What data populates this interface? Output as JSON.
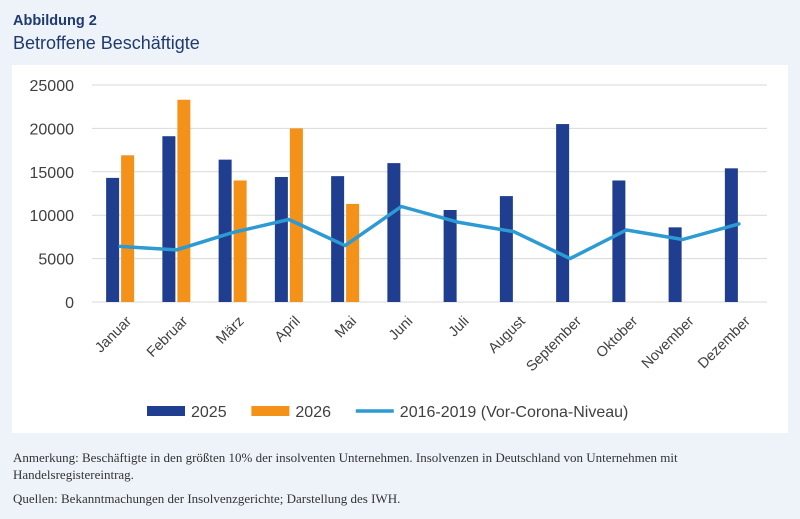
{
  "header": {
    "figure_label": "Abbildung 2",
    "title": "Betroffene Beschäftigte"
  },
  "notes": {
    "annotation": "Anmerkung: Beschäftigte in den größten 10% der insolventen Unternehmen. Insolvenzen in Deutschland von Unternehmen mit Handelsregistereintrag.",
    "sources": "Quellen: Bekanntmachungen der Insolvenzgerichte; Darstellung des IWH."
  },
  "chart_data": {
    "type": "bar",
    "title": "",
    "xlabel": "",
    "ylabel": "",
    "categories": [
      "Januar",
      "Februar",
      "März",
      "April",
      "Mai",
      "Juni",
      "Juli",
      "August",
      "September",
      "Oktober",
      "November",
      "Dezember"
    ],
    "ylim": [
      0,
      25000
    ],
    "yticks": [
      0,
      5000,
      10000,
      15000,
      20000,
      25000
    ],
    "grid": true,
    "legend_position": "bottom",
    "series": [
      {
        "name": "2025",
        "type": "bar",
        "color": "#1f3e8f",
        "values": [
          14300,
          19100,
          16400,
          14400,
          14500,
          16000,
          10600,
          12200,
          20500,
          14000,
          8600,
          15400
        ]
      },
      {
        "name": "2026",
        "type": "bar",
        "color": "#f39118",
        "values": [
          16900,
          23300,
          14000,
          20000,
          11300,
          null,
          null,
          null,
          null,
          null,
          null,
          null
        ]
      },
      {
        "name": "2016-2019 (Vor-Corona-Niveau)",
        "type": "line",
        "color": "#2c9ad3",
        "values": [
          6400,
          6000,
          8000,
          9500,
          6500,
          11000,
          9200,
          8100,
          5000,
          8300,
          7200,
          9000
        ]
      }
    ]
  }
}
